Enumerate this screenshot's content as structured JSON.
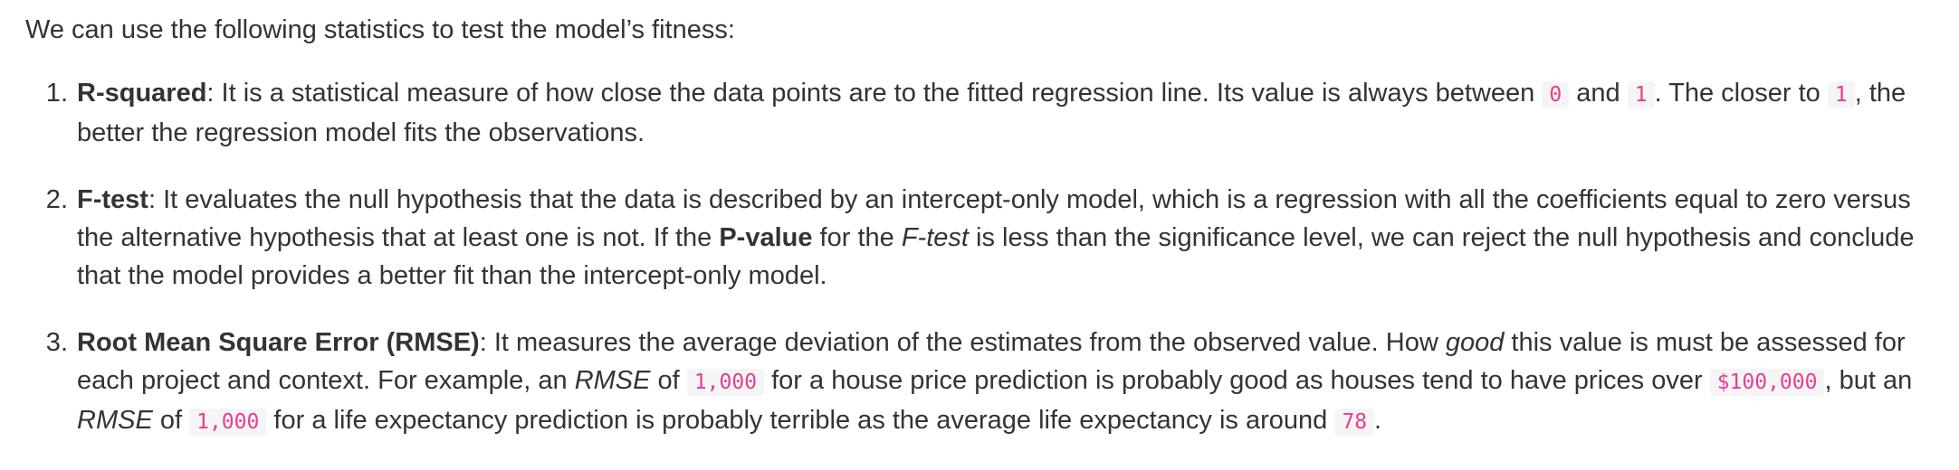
{
  "intro": "We can use the following statistics to test the model’s fitness:",
  "items": [
    {
      "term": "R-squared",
      "t1": ": It is a statistical measure of how close the data points are to the fitted regression line. Its value is always between ",
      "c1": "0",
      "t2": " and ",
      "c2": "1",
      "t3": ". The closer to ",
      "c3": "1",
      "t4": ", the better the regression model fits the observations."
    },
    {
      "term": "F-test",
      "t1": ": It evaluates the null hypothesis that the data is described by an intercept-only model, which is a regression with all the coefficients equal to zero versus the alternative hypothesis that at least one is not. If the ",
      "b1": "P-value",
      "t2": " for the ",
      "i1": "F-test",
      "t3": " is less than the significance level, we can reject the null hypothesis and conclude that the model provides a better fit than the intercept-only model."
    },
    {
      "term": "Root Mean Square Error (RMSE)",
      "t1": ": It measures the average deviation of the estimates from the observed value. How ",
      "i1": "good",
      "t2": " this value is must be assessed for each project and context. For example, an ",
      "i2": "RMSE",
      "t3": " of ",
      "c1": "1,000",
      "t4": " for a house price prediction is probably good as houses tend to have prices over ",
      "c2": "$100,000",
      "t5": ", but an ",
      "i3": "RMSE",
      "t6": " of ",
      "c3": "1,000",
      "t7": " for a life expectancy prediction is probably terrible as the average life expectancy is around ",
      "c4": "78",
      "t8": "."
    }
  ]
}
